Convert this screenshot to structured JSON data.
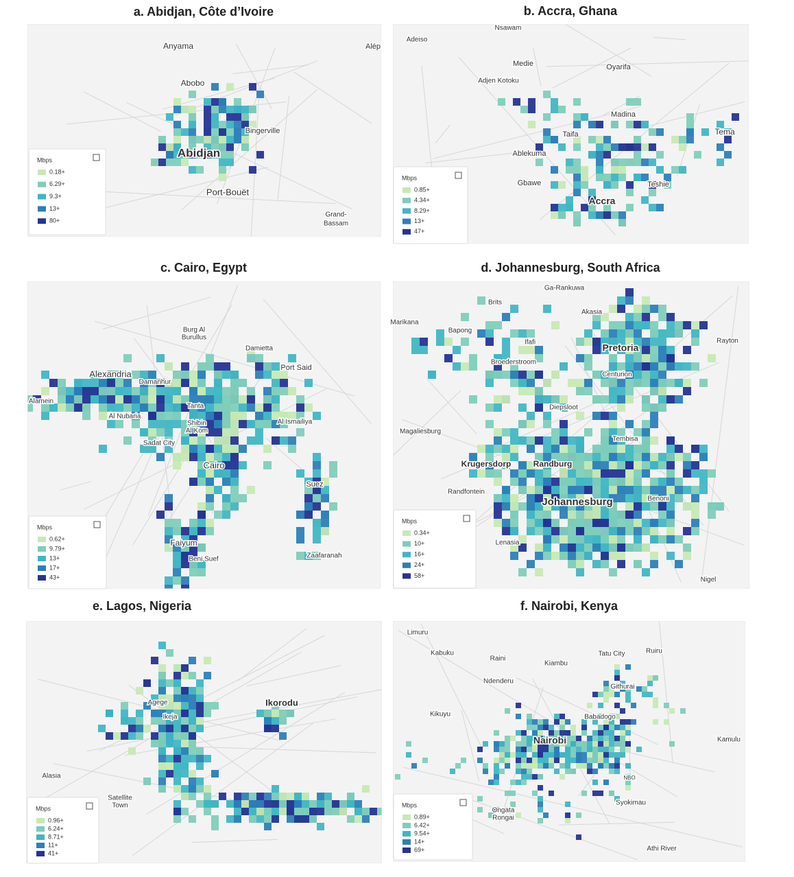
{
  "legend_colors": [
    "#c7e9b4",
    "#7fcdbb",
    "#41b6c4",
    "#2c7fb8",
    "#253494"
  ],
  "panels": [
    {
      "title": "a. Abidjan, Côte d’Ivoire",
      "places": [
        "Anyama",
        "Alép",
        "Abobo",
        "Bingerville",
        "Abidjan",
        "Port-Bouët",
        "Grand-",
        "Bassam"
      ],
      "legend": {
        "title": "Mbps",
        "items": [
          "0.18+",
          "6.29+",
          "9.3+",
          "13+",
          "80+"
        ]
      }
    },
    {
      "title": "b. Accra, Ghana",
      "places": [
        "Nsawam",
        "Adeiso",
        "Medie",
        "Oyarifa",
        "Adjen Kotoku",
        "Madina",
        "Taifa",
        "Tema",
        "Ablekuma",
        "Gbawe",
        "Teshie",
        "Accra"
      ],
      "legend": {
        "title": "Mbps",
        "items": [
          "0.85+",
          "4.34+",
          "8.29+",
          "13+",
          "47+"
        ]
      }
    },
    {
      "title": "c. Cairo, Egypt",
      "places": [
        "Burg Al",
        "Burullus",
        "Damietta",
        "Port Said",
        "Alexandria",
        "Damanhur",
        "Alamein",
        "Tanta",
        "Al Nubaria",
        "Shibin",
        "Al Kom",
        "Al Ismailiya",
        "Sadat City",
        "Cairo",
        "Suez",
        "Faiyum",
        "Beni Suef",
        "Zaafaranah"
      ],
      "legend": {
        "title": "Mbps",
        "items": [
          "0.62+",
          "9.79+",
          "13+",
          "17+",
          "43+"
        ]
      }
    },
    {
      "title": "d. Johannesburg, South Africa",
      "places": [
        "Ga-Rankuwa",
        "Brits",
        "Akasia",
        "Marikana",
        "Bapong",
        "Rayton",
        "Ifafi",
        "Pretoria",
        "Broederstroom",
        "Centurion",
        "Diepsloot",
        "Magaliesburg",
        "Tembisa",
        "Krugersdorp",
        "Randburg",
        "Randfontein",
        "Benoni",
        "Johannesburg",
        "Lenasia",
        "Nigel"
      ],
      "legend": {
        "title": "Mbps",
        "items": [
          "0.34+",
          "10+",
          "16+",
          "24+",
          "58+"
        ]
      }
    },
    {
      "title": "e. Lagos, Nigeria",
      "places": [
        "Agege",
        "Ikorodu",
        "Ikeja",
        "Alasia",
        "Satellite",
        "Town"
      ],
      "legend": {
        "title": "Mbps",
        "items": [
          "0.96+",
          "6.24+",
          "8.71+",
          "11+",
          "41+"
        ]
      }
    },
    {
      "title": "f. Nairobi, Kenya",
      "places": [
        "Limuru",
        "Kabuku",
        "Tatu City",
        "Ruiru",
        "Raini",
        "Kiambu",
        "Ndenderu",
        "Githurai",
        "Kikuyu",
        "Babadogo",
        "Nairobi",
        "Kamulu",
        "NBO",
        "Syokimau",
        "Ongata",
        "Rongai",
        "Athi River"
      ],
      "legend": {
        "title": "Mbps",
        "items": [
          "0.89+",
          "6.42+",
          "9.54+",
          "14+",
          "69+"
        ]
      }
    }
  ]
}
